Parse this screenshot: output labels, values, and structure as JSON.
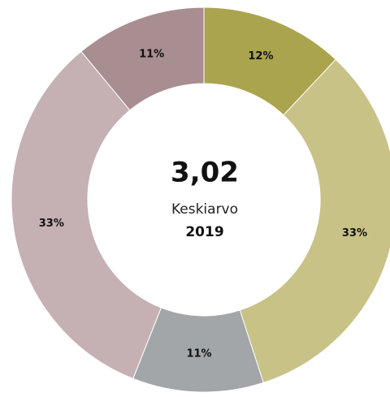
{
  "chart_data": {
    "type": "pie",
    "donut": true,
    "values": [
      12,
      33,
      11,
      33,
      11
    ],
    "value_labels": [
      "12%",
      "33%",
      "11%",
      "33%",
      "11%"
    ],
    "colors": [
      "#aba44e",
      "#c8c287",
      "#a3a6a8",
      "#c5b0b4",
      "#a88e90"
    ],
    "center_value": "3,02",
    "center_label": "Keskiarvo",
    "center_sublabel": "2019"
  }
}
